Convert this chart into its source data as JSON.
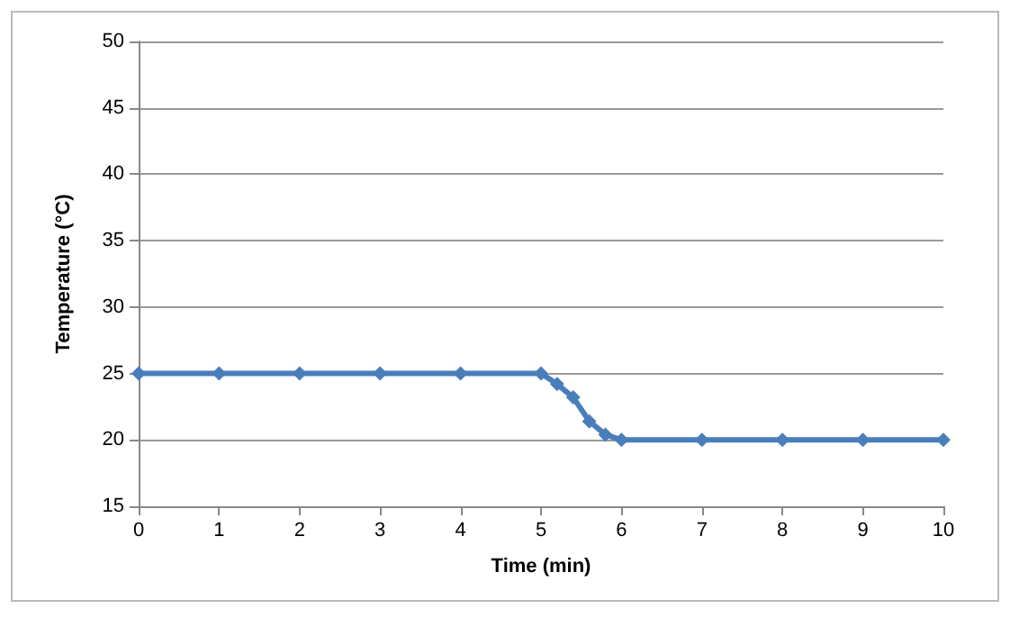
{
  "chart_data": {
    "type": "line",
    "xlabel": "Time (min)",
    "ylabel": "Temperature (°C)",
    "x": [
      0,
      1,
      2,
      3,
      4,
      5,
      5.2,
      5.4,
      5.6,
      5.8,
      6,
      7,
      8,
      9,
      10
    ],
    "series": [
      {
        "color": "#4a7ebb",
        "values": [
          25,
          25,
          25,
          25,
          25,
          25,
          24.2,
          23.2,
          21.4,
          20.4,
          20,
          20,
          20,
          20,
          20
        ]
      }
    ],
    "xlim": [
      0,
      10
    ],
    "xticks": [
      0,
      1,
      2,
      3,
      4,
      5,
      6,
      7,
      8,
      9,
      10
    ],
    "ylim": [
      15,
      50
    ],
    "yticks": [
      15,
      20,
      25,
      30,
      35,
      40,
      45,
      50
    ],
    "grid": "y",
    "marker": "diamond",
    "line_style": "solid"
  }
}
